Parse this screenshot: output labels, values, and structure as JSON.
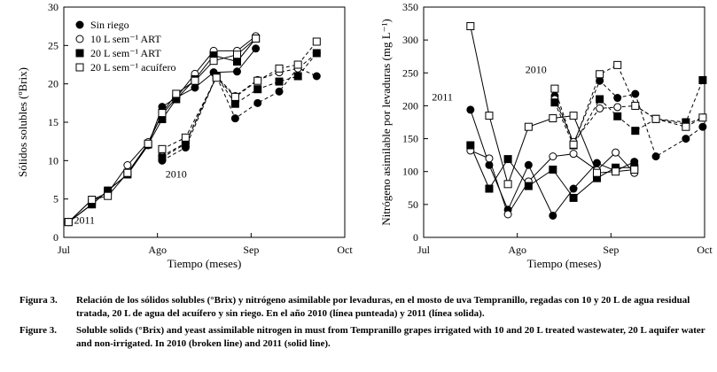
{
  "chart_data": [
    {
      "type": "line",
      "title": "",
      "xlabel": "Tiempo (meses)",
      "ylabel": "Sólidos solubles (ºBrix)",
      "xlim": [
        0,
        3
      ],
      "ylim": [
        0,
        30
      ],
      "x_ticks": [
        "Jul",
        "Ago",
        "Sep",
        "Oct"
      ],
      "y_ticks": [
        0,
        5,
        10,
        15,
        20,
        25,
        30
      ],
      "legend": {
        "position": "top-left",
        "entries": [
          {
            "marker": "filled-circle",
            "label": "Sin riego"
          },
          {
            "marker": "open-circle",
            "label": "10 L sem⁻¹ ART"
          },
          {
            "marker": "filled-square",
            "label": "20 L sem⁻¹ ART"
          },
          {
            "marker": "open-square",
            "label": "20 L sem⁻¹ acuífero"
          }
        ]
      },
      "annotations": [
        {
          "text": "2011",
          "x": 0.22,
          "y": 1.8
        },
        {
          "text": "2010",
          "x": 1.2,
          "y": 7.8
        }
      ],
      "series": [
        {
          "name": "Sin riego",
          "year": "2011",
          "marker": "filled-circle",
          "dashed": false,
          "points": [
            [
              0.05,
              2.0
            ],
            [
              0.3,
              4.3
            ],
            [
              0.47,
              6.1
            ],
            [
              0.68,
              8.2
            ],
            [
              0.9,
              12.0
            ],
            [
              1.05,
              17.0
            ],
            [
              1.2,
              18.2
            ],
            [
              1.4,
              19.5
            ],
            [
              1.6,
              21.5
            ],
            [
              1.85,
              21.6
            ],
            [
              2.05,
              24.6
            ]
          ]
        },
        {
          "name": "10 L sem⁻¹ ART",
          "year": "2011",
          "marker": "open-circle",
          "dashed": false,
          "points": [
            [
              0.05,
              2.0
            ],
            [
              0.3,
              4.9
            ],
            [
              0.47,
              5.8
            ],
            [
              0.68,
              9.4
            ],
            [
              0.9,
              12.4
            ],
            [
              1.05,
              16.0
            ],
            [
              1.2,
              18.2
            ],
            [
              1.4,
              21.3
            ],
            [
              1.6,
              24.3
            ],
            [
              1.85,
              24.3
            ],
            [
              2.05,
              26.2
            ]
          ]
        },
        {
          "name": "20 L sem⁻¹ ART",
          "year": "2011",
          "marker": "filled-square",
          "dashed": false,
          "points": [
            [
              0.05,
              2.0
            ],
            [
              0.3,
              4.3
            ],
            [
              0.47,
              6.1
            ],
            [
              0.68,
              8.2
            ],
            [
              0.9,
              12.1
            ],
            [
              1.05,
              15.4
            ],
            [
              1.2,
              18.0
            ],
            [
              1.4,
              20.6
            ],
            [
              1.6,
              23.7
            ],
            [
              1.85,
              22.9
            ],
            [
              2.05,
              25.9
            ]
          ]
        },
        {
          "name": "20 L sem⁻¹ acuífero",
          "year": "2011",
          "marker": "open-square",
          "dashed": false,
          "points": [
            [
              0.05,
              2.0
            ],
            [
              0.3,
              4.9
            ],
            [
              0.47,
              5.4
            ],
            [
              0.68,
              8.4
            ],
            [
              0.9,
              12.2
            ],
            [
              1.05,
              16.2
            ],
            [
              1.2,
              18.7
            ],
            [
              1.4,
              20.4
            ],
            [
              1.6,
              23.0
            ],
            [
              1.85,
              23.8
            ],
            [
              2.05,
              25.9
            ]
          ]
        },
        {
          "name": "Sin riego",
          "year": "2010",
          "marker": "filled-circle",
          "dashed": true,
          "points": [
            [
              1.05,
              10.0
            ],
            [
              1.3,
              11.7
            ],
            [
              1.63,
              21.0
            ],
            [
              1.83,
              15.5
            ],
            [
              2.07,
              17.5
            ],
            [
              2.3,
              19.0
            ],
            [
              2.5,
              22.1
            ],
            [
              2.7,
              21.0
            ]
          ]
        },
        {
          "name": "10 L sem⁻¹ ART",
          "year": "2010",
          "marker": "open-circle",
          "dashed": true,
          "points": [
            [
              1.05,
              10.6
            ],
            [
              1.3,
              12.3
            ],
            [
              1.63,
              21.0
            ],
            [
              1.83,
              18.4
            ],
            [
              2.07,
              20.5
            ],
            [
              2.3,
              21.5
            ],
            [
              2.5,
              22.0
            ],
            [
              2.7,
              24.0
            ]
          ]
        },
        {
          "name": "20 L sem⁻¹ ART",
          "year": "2010",
          "marker": "filled-square",
          "dashed": true,
          "points": [
            [
              1.05,
              10.4
            ],
            [
              1.3,
              12.2
            ],
            [
              1.63,
              21.0
            ],
            [
              1.83,
              17.4
            ],
            [
              2.07,
              19.3
            ],
            [
              2.3,
              20.3
            ],
            [
              2.5,
              21.0
            ],
            [
              2.7,
              24.0
            ]
          ]
        },
        {
          "name": "20 L sem⁻¹ acuífero",
          "year": "2010",
          "marker": "open-square",
          "dashed": true,
          "points": [
            [
              1.05,
              11.5
            ],
            [
              1.3,
              13.0
            ],
            [
              1.63,
              20.8
            ],
            [
              1.83,
              18.3
            ],
            [
              2.07,
              20.4
            ],
            [
              2.3,
              22.0
            ],
            [
              2.5,
              22.5
            ],
            [
              2.7,
              25.5
            ]
          ]
        }
      ]
    },
    {
      "type": "line",
      "title": "",
      "xlabel": "Tiempo (meses)",
      "ylabel": "Nitrógeno asimilable por levaduras (mg L⁻¹)",
      "xlim": [
        0,
        3
      ],
      "ylim": [
        0,
        350
      ],
      "x_ticks": [
        "Jul",
        "Ago",
        "Sep",
        "Oct"
      ],
      "y_ticks": [
        0,
        50,
        100,
        150,
        200,
        250,
        300,
        350
      ],
      "annotations": [
        {
          "text": "2011",
          "x": 0.2,
          "y": 208
        },
        {
          "text": "2010",
          "x": 1.2,
          "y": 250
        }
      ],
      "series": [
        {
          "name": "Sin riego",
          "year": "2011",
          "marker": "filled-circle",
          "dashed": false,
          "points": [
            [
              0.5,
              194
            ],
            [
              0.7,
              110
            ],
            [
              0.9,
              42
            ],
            [
              1.12,
              110
            ],
            [
              1.38,
              33
            ],
            [
              1.6,
              74
            ],
            [
              1.85,
              113
            ],
            [
              2.05,
              101
            ],
            [
              2.25,
              115
            ]
          ]
        },
        {
          "name": "10 L sem⁻¹ ART",
          "year": "2011",
          "marker": "open-circle",
          "dashed": false,
          "points": [
            [
              0.5,
              132
            ],
            [
              0.7,
              120
            ],
            [
              0.9,
              35
            ],
            [
              1.12,
              85
            ],
            [
              1.38,
              123
            ],
            [
              1.6,
              127
            ],
            [
              1.85,
              102
            ],
            [
              2.05,
              129
            ],
            [
              2.25,
              98
            ]
          ]
        },
        {
          "name": "20 L sem⁻¹ ART",
          "year": "2011",
          "marker": "filled-square",
          "dashed": false,
          "points": [
            [
              0.5,
              140
            ],
            [
              0.7,
              74
            ],
            [
              0.9,
              119
            ],
            [
              1.12,
              78
            ],
            [
              1.38,
              103
            ],
            [
              1.6,
              60
            ],
            [
              1.85,
              90
            ],
            [
              2.05,
              106
            ],
            [
              2.25,
              106
            ]
          ]
        },
        {
          "name": "20 L sem⁻¹ acuífero",
          "year": "2011",
          "marker": "open-square",
          "dashed": false,
          "points": [
            [
              0.5,
              321
            ],
            [
              0.7,
              185
            ],
            [
              0.9,
              81
            ],
            [
              1.12,
              168
            ],
            [
              1.38,
              181
            ],
            [
              1.6,
              185
            ],
            [
              1.85,
              98
            ],
            [
              2.05,
              100
            ],
            [
              2.25,
              103
            ]
          ]
        },
        {
          "name": "Sin riego",
          "year": "2010",
          "marker": "filled-circle",
          "dashed": true,
          "points": [
            [
              1.4,
              215
            ],
            [
              1.6,
              143
            ],
            [
              1.88,
              238
            ],
            [
              2.07,
              212
            ],
            [
              2.26,
              218
            ],
            [
              2.48,
              123
            ],
            [
              2.8,
              150
            ],
            [
              2.98,
              168
            ]
          ]
        },
        {
          "name": "10 L sem⁻¹ ART",
          "year": "2010",
          "marker": "open-circle",
          "dashed": true,
          "points": [
            [
              1.4,
              210
            ],
            [
              1.6,
              145
            ],
            [
              1.88,
              196
            ],
            [
              2.07,
              198
            ],
            [
              2.26,
              200
            ],
            [
              2.48,
              180
            ],
            [
              2.8,
              172
            ],
            [
              2.98,
              182
            ]
          ]
        },
        {
          "name": "20 L sem⁻¹ ART",
          "year": "2010",
          "marker": "filled-square",
          "dashed": true,
          "points": [
            [
              1.4,
              205
            ],
            [
              1.6,
              140
            ],
            [
              1.88,
              210
            ],
            [
              2.07,
              184
            ],
            [
              2.26,
              162
            ],
            [
              2.48,
              180
            ],
            [
              2.8,
              175
            ],
            [
              2.98,
              239
            ]
          ]
        },
        {
          "name": "20 L sem⁻¹ acuífero",
          "year": "2010",
          "marker": "open-square",
          "dashed": true,
          "points": [
            [
              1.4,
              226
            ],
            [
              1.6,
              141
            ],
            [
              1.88,
              248
            ],
            [
              2.07,
              262
            ],
            [
              2.26,
              200
            ],
            [
              2.48,
              180
            ],
            [
              2.8,
              168
            ],
            [
              2.98,
              182
            ]
          ]
        }
      ]
    }
  ],
  "captions": {
    "es_label": "Figura 3.",
    "es_text": "Relación de los sólidos solubles (°Brix) y nitrógeno asimilable por levaduras, en el mosto de uva Tempranillo, regadas con 10 y 20 L de agua residual tratada, 20 L de agua del acuífero y sin riego. En el año 2010 (línea punteada) y 2011 (línea solida).",
    "en_label": "Figure 3.",
    "en_text": "Soluble solids (°Brix) and yeast assimilable nitrogen in must from Tempranillo grapes irrigated with 10 and 20 L treated wastewater, 20 L aquifer water and non-irrigated. In 2010 (broken line) and 2011 (solid line)."
  }
}
